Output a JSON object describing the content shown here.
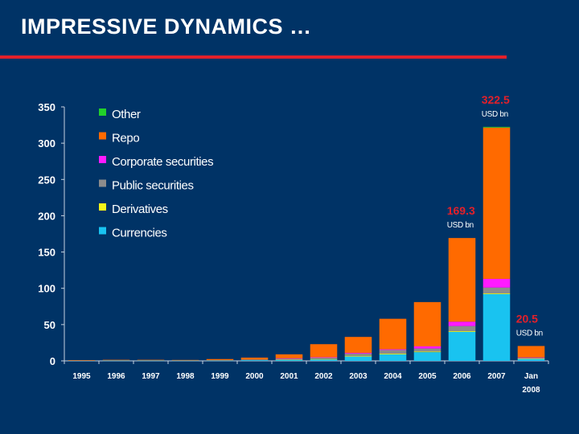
{
  "slide": {
    "title": "IMPRESSIVE DYNAMICS …"
  },
  "colors": {
    "background": "#003366",
    "rule": "#e3202a",
    "axis": "#c8d2e0"
  },
  "chart_data": {
    "type": "bar",
    "stacked": true,
    "title": "",
    "xlabel": "",
    "ylabel": "",
    "ylim": [
      0,
      350
    ],
    "yticks": [
      0,
      50,
      100,
      150,
      200,
      250,
      300,
      350
    ],
    "grid": false,
    "legend_position": "top-left",
    "categories": [
      "1995",
      "1996",
      "1997",
      "1998",
      "1999",
      "2000",
      "2001",
      "2002",
      "2003",
      "2004",
      "2005",
      "2006",
      "2007",
      "Jan 2008"
    ],
    "series": [
      {
        "name": "Currencies",
        "color": "#19c3f0",
        "values": [
          0.5,
          0.5,
          0.5,
          0.5,
          0.5,
          1,
          1.5,
          2,
          6,
          9,
          12,
          40,
          92,
          3
        ]
      },
      {
        "name": "Derivatives",
        "color": "#f5f51a",
        "values": [
          0,
          0,
          0,
          0,
          0,
          0,
          0.5,
          0.5,
          1,
          1,
          1,
          1,
          1,
          0.2
        ]
      },
      {
        "name": "Public securities",
        "color": "#8c8c8c",
        "values": [
          0.3,
          0.5,
          0.5,
          0.5,
          0.5,
          0.8,
          1,
          2,
          3,
          5,
          4,
          7,
          8,
          1
        ]
      },
      {
        "name": "Corporate securities",
        "color": "#ff1aff",
        "values": [
          0,
          0,
          0,
          0,
          0,
          0,
          0.5,
          0.5,
          1,
          1,
          3,
          6,
          12,
          0.5
        ]
      },
      {
        "name": "Repo",
        "color": "#ff6a00",
        "values": [
          0.2,
          0.5,
          0.5,
          0.3,
          1.5,
          2.7,
          5.5,
          18,
          22,
          42,
          61,
          115.3,
          208.5,
          15.8
        ]
      },
      {
        "name": "Other",
        "color": "#22d02a",
        "values": [
          0,
          0,
          0,
          0,
          0,
          0,
          0,
          0,
          0,
          0,
          0,
          0,
          1,
          0
        ]
      }
    ],
    "annotations": [
      {
        "category": "2006",
        "value": "169.3",
        "unit": "USD bn"
      },
      {
        "category": "2007",
        "value": "322.5",
        "unit": "USD bn"
      },
      {
        "category": "Jan 2008",
        "value": "20.5",
        "unit": "USD bn"
      }
    ]
  }
}
